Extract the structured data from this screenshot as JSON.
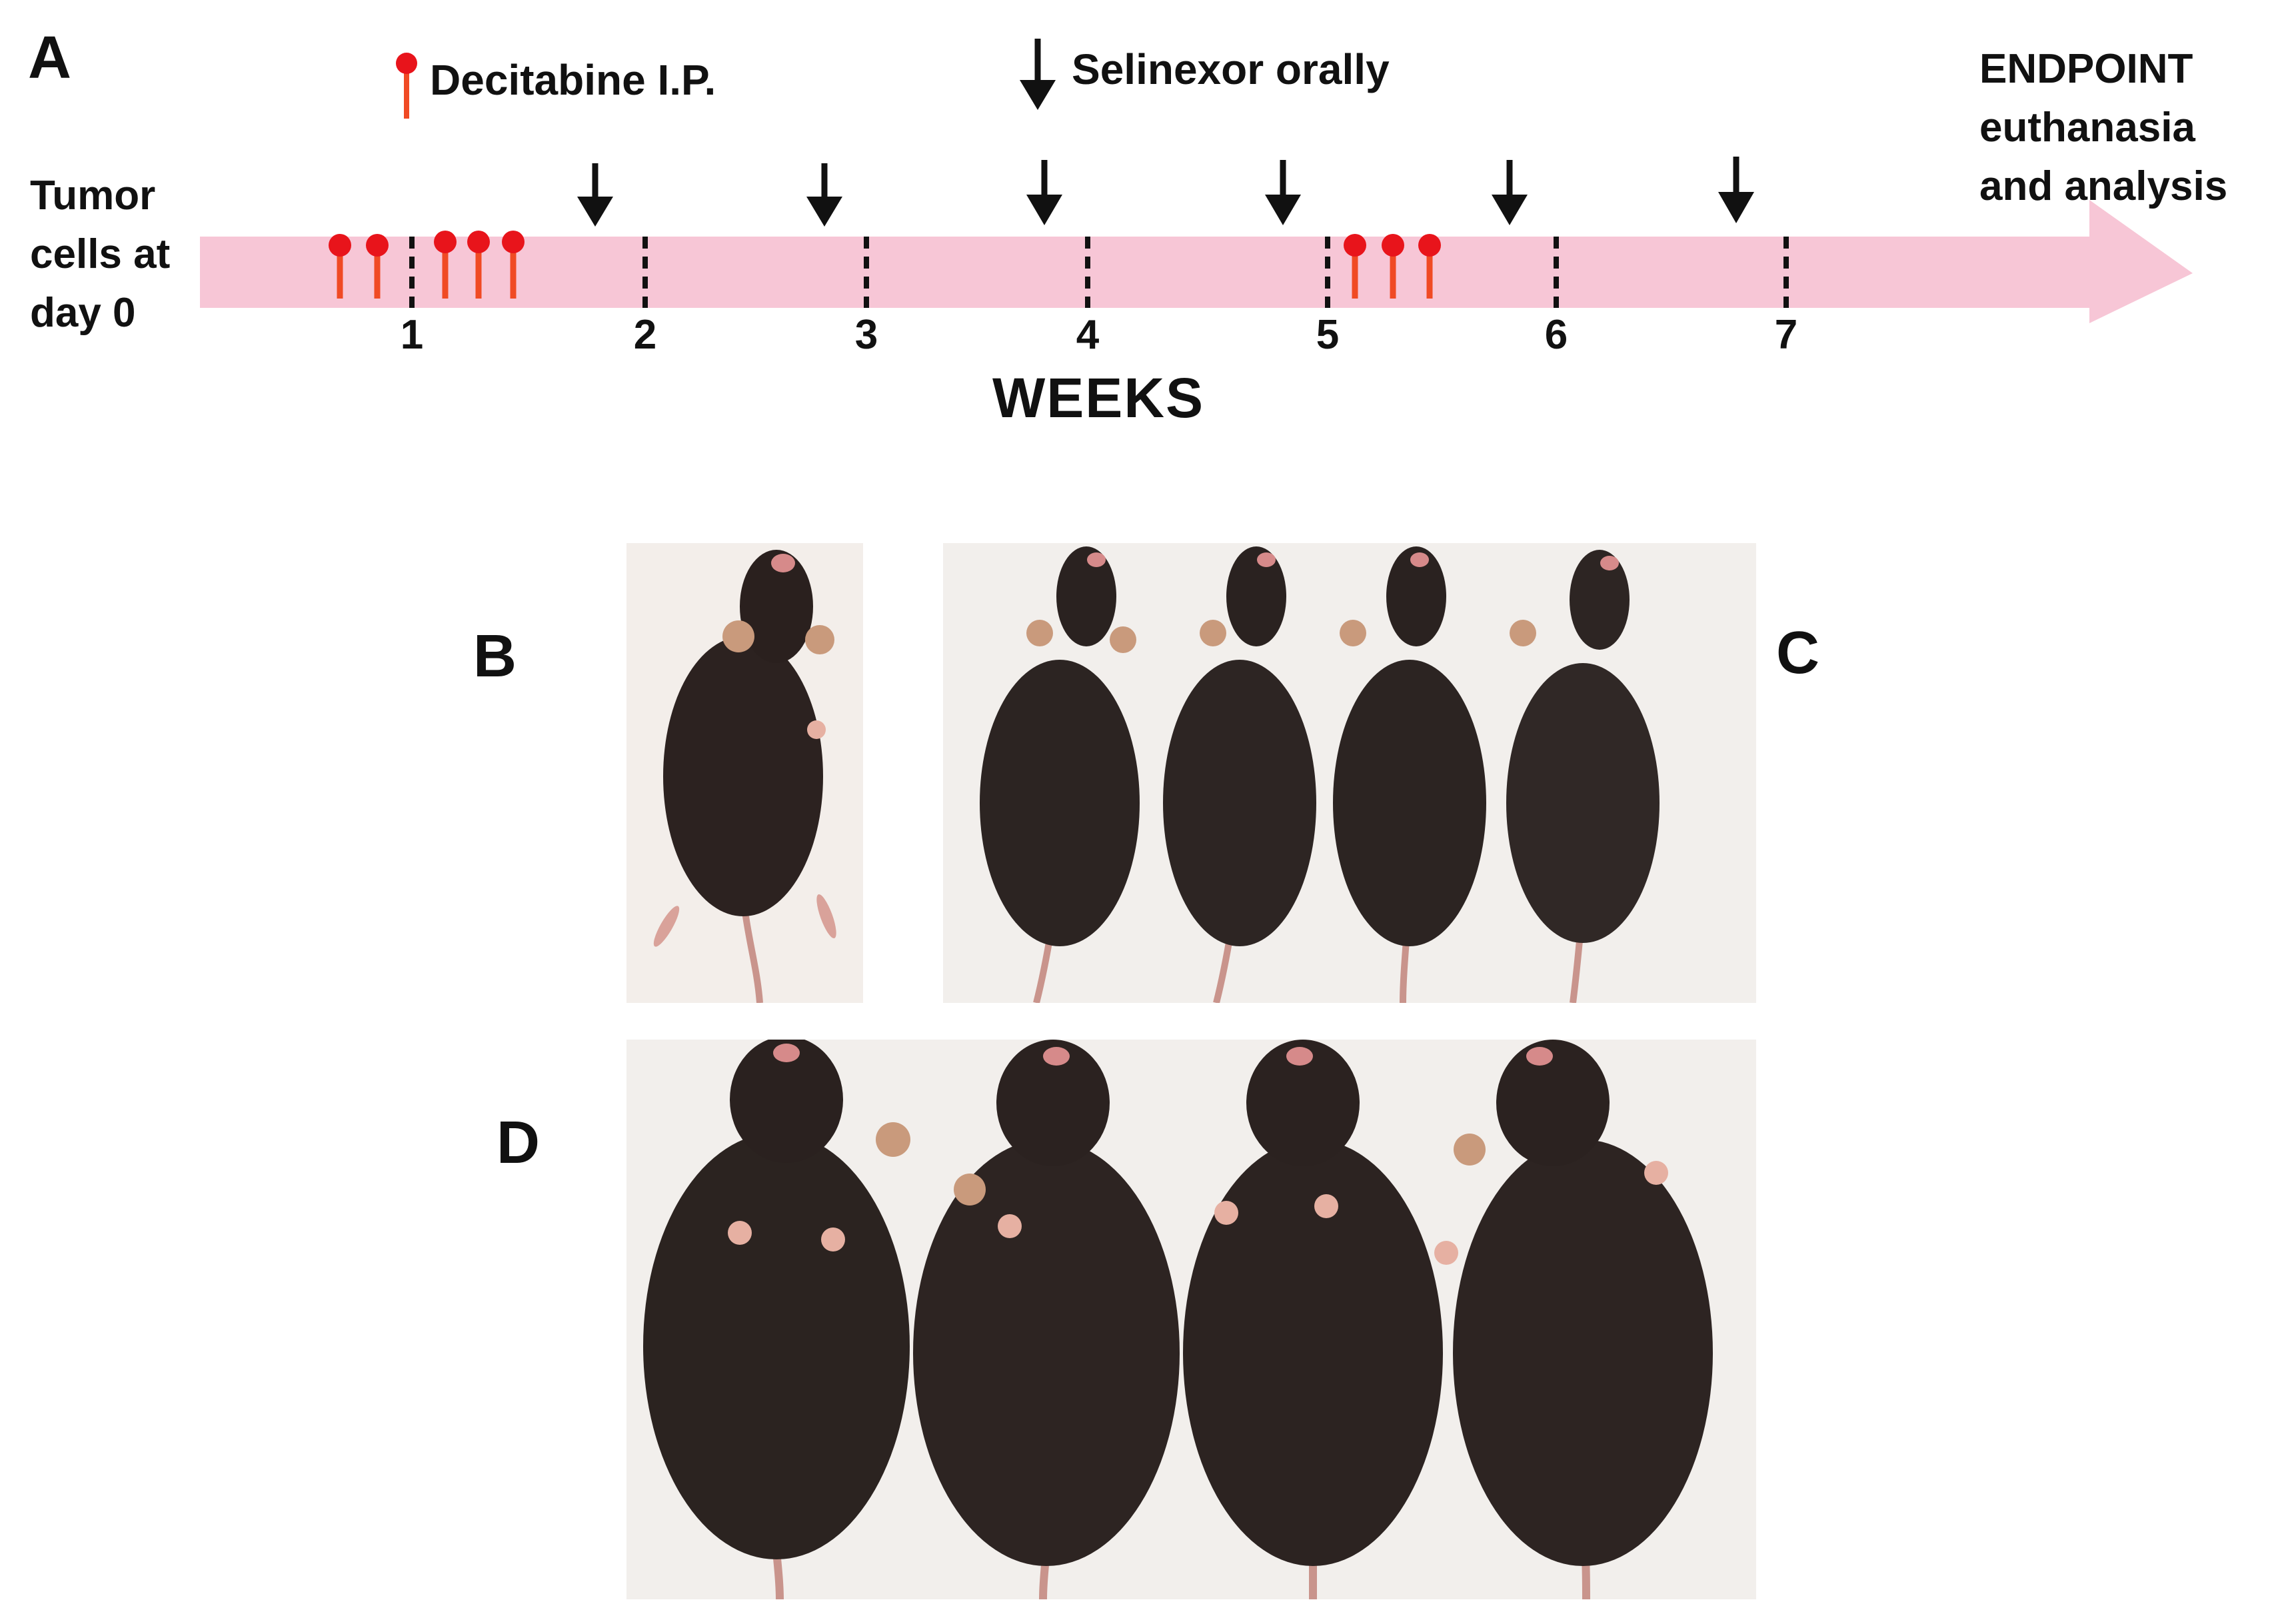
{
  "panels": {
    "a": "A",
    "b": "B",
    "c": "C",
    "d": "D"
  },
  "timeline": {
    "start_label_lines": [
      "Tumor",
      "cells at",
      "day 0"
    ],
    "end_label_lines": [
      "ENDPOINT",
      "euthanasia",
      "and analysis"
    ],
    "axis_title": "WEEKS",
    "week_labels": [
      "1",
      "2",
      "3",
      "4",
      "5",
      "6",
      "7"
    ],
    "decitabine_label": "Decitabine I.P.",
    "selinexor_label": "Selinexor orally",
    "colors": {
      "band": "#f7c6d6",
      "decitabine_head": "#e8141b",
      "decitabine_stem": "#f04a24",
      "arrow": "#111111"
    }
  },
  "photos": {
    "b": {
      "mice_count": 1
    },
    "c": {
      "mice_count": 4
    },
    "d": {
      "mice_count": 4
    }
  }
}
